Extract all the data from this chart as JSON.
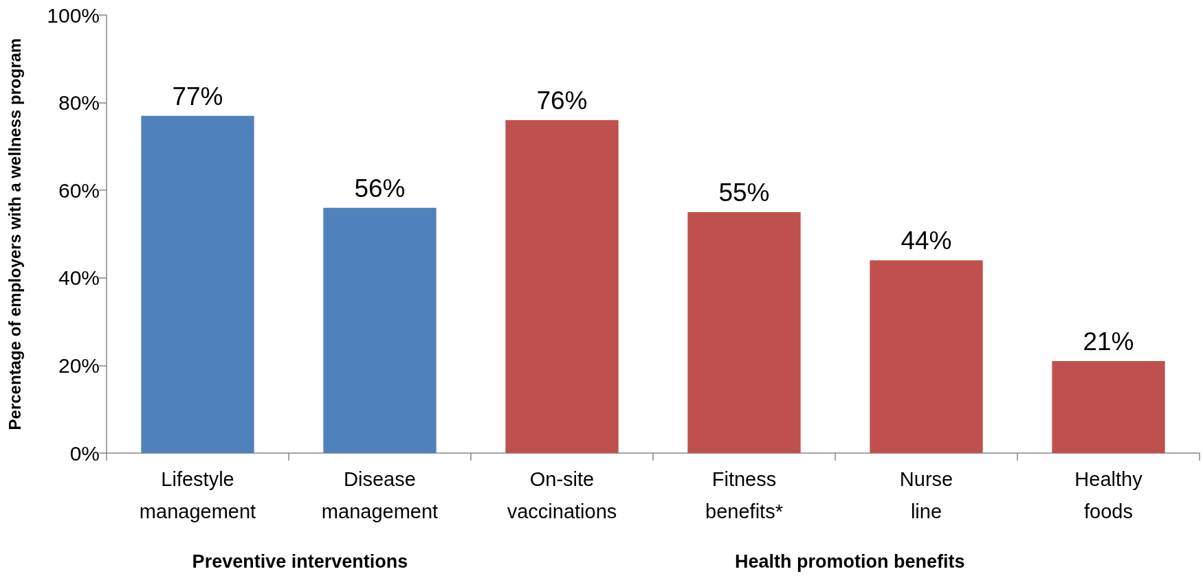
{
  "chart_data": {
    "type": "bar",
    "categories": [
      "Lifestyle management",
      "Disease management",
      "On-site vaccinations",
      "Fitness benefits*",
      "Nurse line",
      "Healthy foods"
    ],
    "values": [
      77,
      56,
      76,
      55,
      44,
      21
    ],
    "colors": [
      "#4f81bd",
      "#4f81bd",
      "#c0504d",
      "#c0504d",
      "#c0504d",
      "#c0504d"
    ],
    "value_labels": [
      "77%",
      "56%",
      "76%",
      "55%",
      "44%",
      "21%"
    ],
    "ylabel": "Percentage of employers with a wellness program",
    "ylim": [
      0,
      100
    ],
    "yticks": [
      {
        "value": 0,
        "label": "0%"
      },
      {
        "value": 20,
        "label": "20%"
      },
      {
        "value": 40,
        "label": "40%"
      },
      {
        "value": 60,
        "label": "60%"
      },
      {
        "value": 80,
        "label": "80%"
      },
      {
        "value": 100,
        "label": "100%"
      }
    ],
    "grid": false,
    "annotations": [
      "Preventive interventions",
      "Health promotion benefits"
    ]
  }
}
